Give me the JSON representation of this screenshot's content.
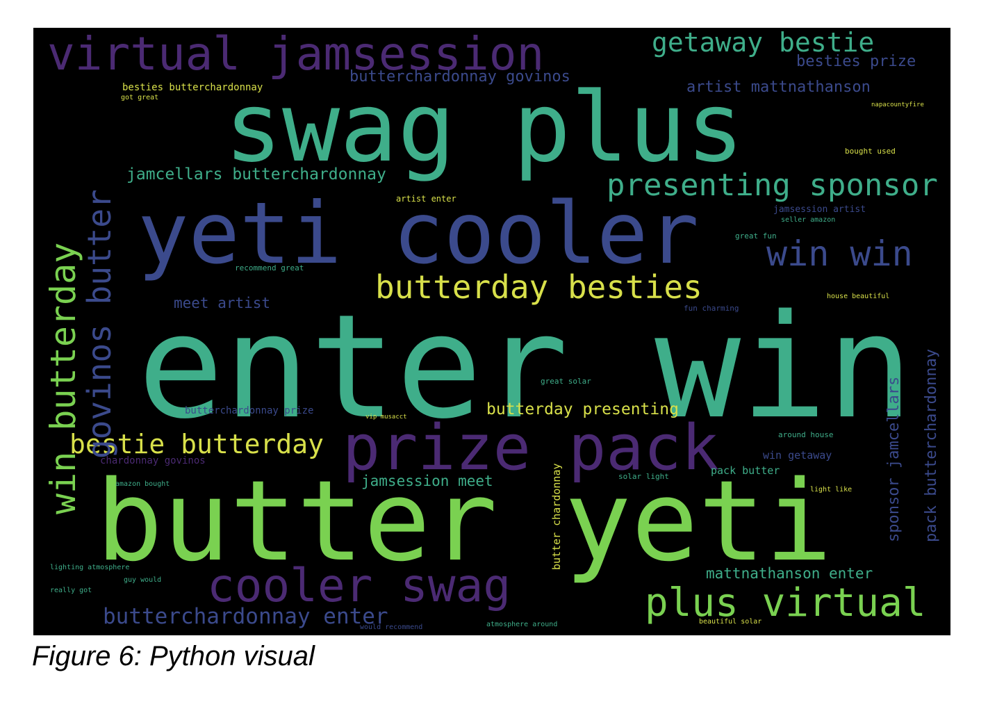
{
  "figure": {
    "caption": "Figure 6: Python visual",
    "background": "#000000",
    "palette": {
      "teal": "#3fae8a",
      "green": "#7ad151",
      "purple": "#4b2a73",
      "indigo": "#3b4a8c",
      "yellow": "#d8e04a"
    },
    "words": [
      {
        "id": "enter-win",
        "text": "enter win",
        "color": "teal"
      },
      {
        "id": "butter-yeti",
        "text": "butter yeti",
        "color": "green"
      },
      {
        "id": "swag-plus",
        "text": "swag plus",
        "color": "teal"
      },
      {
        "id": "yeti-cooler",
        "text": "yeti cooler",
        "color": "indigo"
      },
      {
        "id": "prize-pack",
        "text": "prize pack",
        "color": "purple"
      },
      {
        "id": "virtual-jamsession",
        "text": "virtual jamsession",
        "color": "purple"
      },
      {
        "id": "cooler-swag",
        "text": "cooler swag",
        "color": "purple"
      },
      {
        "id": "butterday-besties",
        "text": "butterday besties",
        "color": "yellow"
      },
      {
        "id": "presenting-sponsor",
        "text": "presenting sponsor",
        "color": "teal"
      },
      {
        "id": "plus-virtual",
        "text": "plus virtual",
        "color": "green"
      },
      {
        "id": "getaway-bestie",
        "text": "getaway bestie",
        "color": "teal"
      },
      {
        "id": "win-win",
        "text": "win win",
        "color": "indigo"
      },
      {
        "id": "bestie-butterday",
        "text": "bestie butterday",
        "color": "yellow"
      },
      {
        "id": "butterchardonnay-enter",
        "text": "butterchardonnay enter",
        "color": "indigo"
      },
      {
        "id": "jamcellars-butterchardonnay",
        "text": "jamcellars butterchardonnay",
        "color": "teal"
      },
      {
        "id": "butterchardonnay-govinos",
        "text": "butterchardonnay govinos",
        "color": "indigo"
      },
      {
        "id": "artist-mattnathanson",
        "text": "artist mattnathanson",
        "color": "indigo"
      },
      {
        "id": "besties-prize",
        "text": "besties prize",
        "color": "indigo"
      },
      {
        "id": "butterday-presenting",
        "text": "butterday presenting",
        "color": "yellow"
      },
      {
        "id": "mattnathanson-enter",
        "text": "mattnathanson enter",
        "color": "teal"
      },
      {
        "id": "jamsession-meet",
        "text": "jamsession meet",
        "color": "teal"
      },
      {
        "id": "meet-artist",
        "text": "meet artist",
        "color": "indigo"
      },
      {
        "id": "besties-butterchardonnay",
        "text": "besties butterchardonnay",
        "color": "yellow"
      },
      {
        "id": "butterchardonnay-prize",
        "text": "butterchardonnay prize",
        "color": "indigo"
      },
      {
        "id": "chardonnay-govinos",
        "text": "chardonnay govinos",
        "color": "purple"
      },
      {
        "id": "pack-butter",
        "text": "pack butter",
        "color": "teal"
      },
      {
        "id": "win-getaway",
        "text": "win getaway",
        "color": "indigo"
      },
      {
        "id": "jamsession-artist",
        "text": "jamsession artist",
        "color": "indigo"
      },
      {
        "id": "artist-enter",
        "text": "artist enter",
        "color": "yellow"
      },
      {
        "id": "recommend-great",
        "text": "recommend great",
        "color": "teal"
      },
      {
        "id": "great-solar",
        "text": "great solar",
        "color": "teal"
      },
      {
        "id": "around-house",
        "text": "around house",
        "color": "teal"
      },
      {
        "id": "solar-light",
        "text": "solar light",
        "color": "teal"
      },
      {
        "id": "amazon-bought",
        "text": "amazon bought",
        "color": "teal"
      },
      {
        "id": "lighting-atmosphere",
        "text": "lighting atmosphere",
        "color": "teal"
      },
      {
        "id": "got-great",
        "text": "got great",
        "color": "yellow"
      },
      {
        "id": "guy-would",
        "text": "guy would",
        "color": "teal"
      },
      {
        "id": "really-got",
        "text": "really got",
        "color": "teal"
      },
      {
        "id": "would-recommend",
        "text": "would recommend",
        "color": "indigo"
      },
      {
        "id": "atmosphere-around",
        "text": "atmosphere around",
        "color": "teal"
      },
      {
        "id": "beautiful-solar",
        "text": "beautiful solar",
        "color": "yellow"
      },
      {
        "id": "house-beautiful",
        "text": "house beautiful",
        "color": "yellow"
      },
      {
        "id": "light-like",
        "text": "light like",
        "color": "yellow"
      },
      {
        "id": "great-fun",
        "text": "great fun",
        "color": "teal"
      },
      {
        "id": "seller-amazon",
        "text": "seller amazon",
        "color": "teal"
      },
      {
        "id": "bought-used",
        "text": "bought used",
        "color": "yellow"
      },
      {
        "id": "napacountyfire",
        "text": "napacountyfire",
        "color": "yellow"
      },
      {
        "id": "fun-charming",
        "text": "fun charming",
        "color": "indigo"
      },
      {
        "id": "vip-musacct",
        "text": "vip musacct",
        "color": "yellow"
      },
      {
        "id": "win-butterday",
        "text": "win butterday",
        "color": "green"
      },
      {
        "id": "govinos-butter",
        "text": "govinos butter",
        "color": "indigo"
      },
      {
        "id": "butter-chardonnay",
        "text": "butter chardonnay",
        "color": "yellow"
      },
      {
        "id": "sponsor-jamcellars",
        "text": "sponsor jamcellars",
        "color": "indigo"
      },
      {
        "id": "pack-butterchardonnay",
        "text": "pack butterchardonnay",
        "color": "indigo"
      }
    ]
  }
}
